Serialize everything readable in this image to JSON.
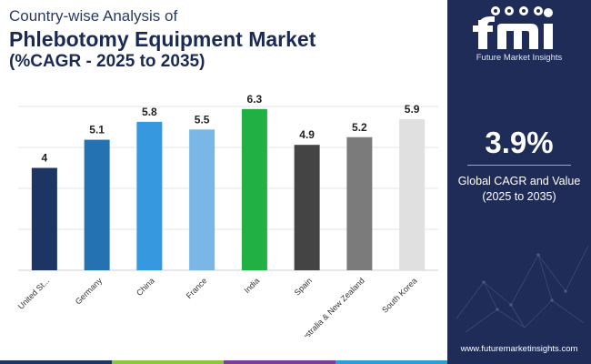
{
  "header": {
    "title_line1": "Country-wise Analysis of",
    "title_line2": "Phlebotomy Equipment Market",
    "title_line3": "(%CAGR - 2025 to 2035)"
  },
  "chart_data": {
    "type": "bar",
    "categories": [
      "United St...",
      "Germany",
      "China",
      "France",
      "India",
      "Spain",
      "Australia & New Zealand",
      "South Korea"
    ],
    "values": [
      4,
      5.1,
      5.8,
      5.5,
      6.3,
      4.9,
      5.2,
      5.9
    ],
    "labels": [
      "4",
      "5.1",
      "5.8",
      "5.5",
      "6.3",
      "4.9",
      "5.2",
      "5.9"
    ],
    "colors": [
      "#1d3565",
      "#2572b2",
      "#3698de",
      "#7ab7e6",
      "#20b043",
      "#444444",
      "#7b7b7b",
      "#e0e0e0"
    ],
    "ylim": [
      0,
      6.4
    ],
    "grid": true,
    "xlabel": "",
    "ylabel": ""
  },
  "panel": {
    "brand_name": "Future Market Insights",
    "cagr_value": "3.9%",
    "cagr_label_line1": "Global CAGR and Value",
    "cagr_label_line2": "(2025 to 2035)",
    "website": "www.futuremarketinsights.com",
    "background": "#1f2c58"
  },
  "bottom_strip_colors": [
    "#1d3565",
    "#8cc63f",
    "#7b3f98",
    "#2a9fd6"
  ]
}
